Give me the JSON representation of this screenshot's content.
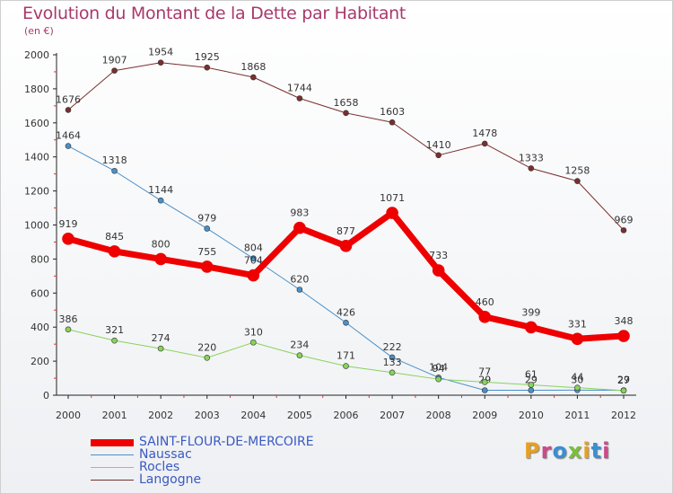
{
  "title": "Evolution du Montant de la Dette par Habitant",
  "unit": "(en €)",
  "brand": {
    "text": "Proxiti"
  },
  "chart_data": {
    "type": "line",
    "x": [
      2000,
      2001,
      2002,
      2003,
      2004,
      2005,
      2006,
      2007,
      2008,
      2009,
      2010,
      2011,
      2012
    ],
    "ylim": [
      0,
      2000
    ],
    "yticks": [
      0,
      200,
      400,
      600,
      800,
      1000,
      1200,
      1400,
      1600,
      1800,
      2000
    ],
    "grid": false,
    "legend_position": "bottom-left",
    "series": [
      {
        "name": "Langogne",
        "color": "#7a2f2f",
        "values": [
          1676,
          1907,
          1954,
          1925,
          1868,
          1744,
          1658,
          1603,
          1410,
          1478,
          1333,
          1258,
          969
        ]
      },
      {
        "name": "Naussac",
        "color": "#4a90c8",
        "values": [
          1464,
          1318,
          1144,
          979,
          804,
          620,
          426,
          222,
          104,
          29,
          29,
          30,
          29
        ]
      },
      {
        "name": "Rocles",
        "color": "#88d35a",
        "values": [
          386,
          321,
          274,
          220,
          310,
          234,
          171,
          133,
          94,
          77,
          61,
          44,
          27
        ]
      },
      {
        "name": "SAINT-FLOUR-DE-MERCOIRE",
        "color": "#ee0000",
        "values": [
          919,
          845,
          800,
          755,
          704,
          983,
          877,
          1071,
          733,
          460,
          399,
          331,
          348
        ]
      }
    ],
    "legend_order": [
      "SAINT-FLOUR-DE-MERCOIRE",
      "Naussac",
      "Rocles",
      "Langogne"
    ]
  }
}
